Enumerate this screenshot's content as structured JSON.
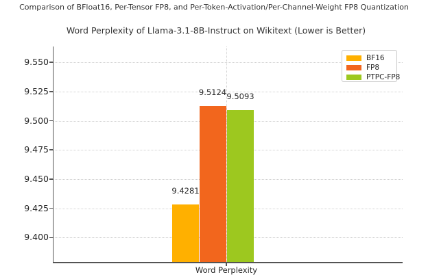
{
  "chart_data": {
    "type": "bar",
    "suptitle": "Comparison of BFloat16, Per-Tensor FP8, and Per-Token-Activation/Per-Channel-Weight FP8 Quantization",
    "title": "Word Perplexity of Llama-3.1-8B-Instruct on Wikitext (Lower is Better)",
    "categories": [
      "Word Perplexity"
    ],
    "series": [
      {
        "name": "BF16",
        "values": [
          9.4281
        ],
        "label": "9.4281",
        "color": "#ffb000"
      },
      {
        "name": "FP8",
        "values": [
          9.5124
        ],
        "label": "9.5124",
        "color": "#f2661d"
      },
      {
        "name": "PTPC-FP8",
        "values": [
          9.5093
        ],
        "label": "9.5093",
        "color": "#9dc81f"
      }
    ],
    "xlabel": "",
    "ylabel": "",
    "ylim": [
      9.378,
      9.5635
    ],
    "yticks": [
      9.4,
      9.425,
      9.45,
      9.475,
      9.5,
      9.525,
      9.55
    ],
    "ytick_labels": [
      "9.400",
      "9.425",
      "9.450",
      "9.475",
      "9.500",
      "9.525",
      "9.550"
    ],
    "grid": true,
    "grid_linestyle": "dotted",
    "legend": {
      "position": "upper right",
      "entries": [
        "BF16",
        "FP8",
        "PTPC-FP8"
      ]
    }
  }
}
